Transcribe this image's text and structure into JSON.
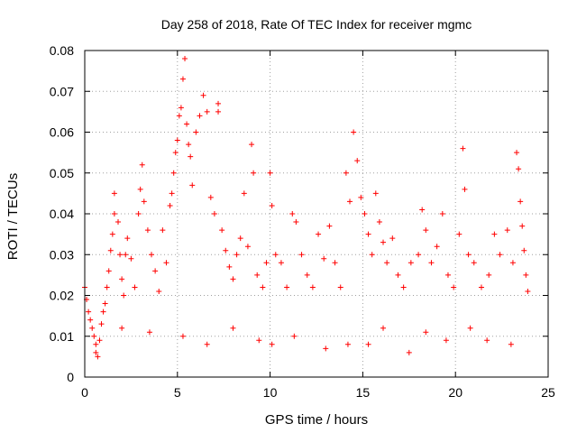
{
  "chart_data": {
    "type": "scatter",
    "title": "Day 258 of 2018, Rate Of TEC Index for receiver mgmc",
    "xlabel": "GPS time / hours",
    "ylabel": "ROTI / TECUs",
    "xlim": [
      0,
      25
    ],
    "ylim": [
      0,
      0.08
    ],
    "xticks": [
      0,
      5,
      10,
      15,
      20,
      25
    ],
    "yticks": [
      0,
      0.01,
      0.02,
      0.03,
      0.04,
      0.05,
      0.06,
      0.07,
      0.08
    ],
    "ytick_labels": [
      "0",
      "0.01",
      "0.02",
      "0.03",
      "0.04",
      "0.05",
      "0.06",
      "0.07",
      "0.08"
    ],
    "grid": true,
    "marker": "+",
    "color": "#ff0000",
    "series": [
      {
        "name": "ROTI",
        "points": [
          [
            0.0,
            0.022
          ],
          [
            0.1,
            0.019
          ],
          [
            0.2,
            0.016
          ],
          [
            0.3,
            0.014
          ],
          [
            0.4,
            0.012
          ],
          [
            0.5,
            0.01
          ],
          [
            0.6,
            0.008
          ],
          [
            0.6,
            0.006
          ],
          [
            0.7,
            0.005
          ],
          [
            0.8,
            0.009
          ],
          [
            0.9,
            0.013
          ],
          [
            1.0,
            0.016
          ],
          [
            1.1,
            0.018
          ],
          [
            1.2,
            0.022
          ],
          [
            1.3,
            0.026
          ],
          [
            1.4,
            0.031
          ],
          [
            1.5,
            0.035
          ],
          [
            1.6,
            0.045
          ],
          [
            1.6,
            0.04
          ],
          [
            1.8,
            0.038
          ],
          [
            1.9,
            0.03
          ],
          [
            2.0,
            0.024
          ],
          [
            2.1,
            0.02
          ],
          [
            2.2,
            0.03
          ],
          [
            2.3,
            0.034
          ],
          [
            2.5,
            0.029
          ],
          [
            2.7,
            0.022
          ],
          [
            2.9,
            0.04
          ],
          [
            3.0,
            0.046
          ],
          [
            3.1,
            0.052
          ],
          [
            3.2,
            0.043
          ],
          [
            3.4,
            0.036
          ],
          [
            3.6,
            0.03
          ],
          [
            3.8,
            0.026
          ],
          [
            4.0,
            0.021
          ],
          [
            4.2,
            0.036
          ],
          [
            4.4,
            0.028
          ],
          [
            4.6,
            0.042
          ],
          [
            4.7,
            0.045
          ],
          [
            4.8,
            0.05
          ],
          [
            4.9,
            0.055
          ],
          [
            5.0,
            0.058
          ],
          [
            5.1,
            0.064
          ],
          [
            5.2,
            0.066
          ],
          [
            5.3,
            0.073
          ],
          [
            5.4,
            0.078
          ],
          [
            5.5,
            0.062
          ],
          [
            5.6,
            0.057
          ],
          [
            5.7,
            0.054
          ],
          [
            5.8,
            0.047
          ],
          [
            6.0,
            0.06
          ],
          [
            6.2,
            0.064
          ],
          [
            6.4,
            0.069
          ],
          [
            6.6,
            0.065
          ],
          [
            6.8,
            0.044
          ],
          [
            7.0,
            0.04
          ],
          [
            7.2,
            0.067
          ],
          [
            7.2,
            0.065
          ],
          [
            7.4,
            0.036
          ],
          [
            7.6,
            0.031
          ],
          [
            7.8,
            0.027
          ],
          [
            8.0,
            0.024
          ],
          [
            8.2,
            0.03
          ],
          [
            8.4,
            0.034
          ],
          [
            8.6,
            0.045
          ],
          [
            8.8,
            0.032
          ],
          [
            9.0,
            0.057
          ],
          [
            9.1,
            0.05
          ],
          [
            9.3,
            0.025
          ],
          [
            9.6,
            0.022
          ],
          [
            9.8,
            0.028
          ],
          [
            10.0,
            0.05
          ],
          [
            10.1,
            0.042
          ],
          [
            10.3,
            0.03
          ],
          [
            10.6,
            0.028
          ],
          [
            10.9,
            0.022
          ],
          [
            11.2,
            0.04
          ],
          [
            11.4,
            0.038
          ],
          [
            11.7,
            0.03
          ],
          [
            12.0,
            0.025
          ],
          [
            12.3,
            0.022
          ],
          [
            12.6,
            0.035
          ],
          [
            12.9,
            0.029
          ],
          [
            13.2,
            0.037
          ],
          [
            13.5,
            0.028
          ],
          [
            13.8,
            0.022
          ],
          [
            14.1,
            0.05
          ],
          [
            14.3,
            0.043
          ],
          [
            14.5,
            0.06
          ],
          [
            14.7,
            0.053
          ],
          [
            14.9,
            0.044
          ],
          [
            15.1,
            0.04
          ],
          [
            15.3,
            0.035
          ],
          [
            15.5,
            0.03
          ],
          [
            15.7,
            0.045
          ],
          [
            15.9,
            0.038
          ],
          [
            16.1,
            0.033
          ],
          [
            16.3,
            0.028
          ],
          [
            16.6,
            0.034
          ],
          [
            16.9,
            0.025
          ],
          [
            17.2,
            0.022
          ],
          [
            17.6,
            0.028
          ],
          [
            18.0,
            0.03
          ],
          [
            18.2,
            0.041
          ],
          [
            18.4,
            0.036
          ],
          [
            18.7,
            0.028
          ],
          [
            19.0,
            0.032
          ],
          [
            19.3,
            0.04
          ],
          [
            19.6,
            0.025
          ],
          [
            19.9,
            0.022
          ],
          [
            20.2,
            0.035
          ],
          [
            20.4,
            0.056
          ],
          [
            20.5,
            0.046
          ],
          [
            20.7,
            0.03
          ],
          [
            21.0,
            0.028
          ],
          [
            21.4,
            0.022
          ],
          [
            21.8,
            0.025
          ],
          [
            22.1,
            0.035
          ],
          [
            22.4,
            0.03
          ],
          [
            22.8,
            0.036
          ],
          [
            23.1,
            0.028
          ],
          [
            23.3,
            0.055
          ],
          [
            23.4,
            0.051
          ],
          [
            23.5,
            0.043
          ],
          [
            23.6,
            0.037
          ],
          [
            23.7,
            0.031
          ],
          [
            23.8,
            0.025
          ],
          [
            23.9,
            0.021
          ],
          [
            2.0,
            0.012
          ],
          [
            3.5,
            0.011
          ],
          [
            5.3,
            0.01
          ],
          [
            6.6,
            0.008
          ],
          [
            8.0,
            0.012
          ],
          [
            9.4,
            0.009
          ],
          [
            10.1,
            0.008
          ],
          [
            11.3,
            0.01
          ],
          [
            13.0,
            0.007
          ],
          [
            14.2,
            0.008
          ],
          [
            15.3,
            0.008
          ],
          [
            16.1,
            0.012
          ],
          [
            17.5,
            0.006
          ],
          [
            18.4,
            0.011
          ],
          [
            19.5,
            0.009
          ],
          [
            20.8,
            0.012
          ],
          [
            21.7,
            0.009
          ],
          [
            23.0,
            0.008
          ]
        ]
      }
    ]
  }
}
